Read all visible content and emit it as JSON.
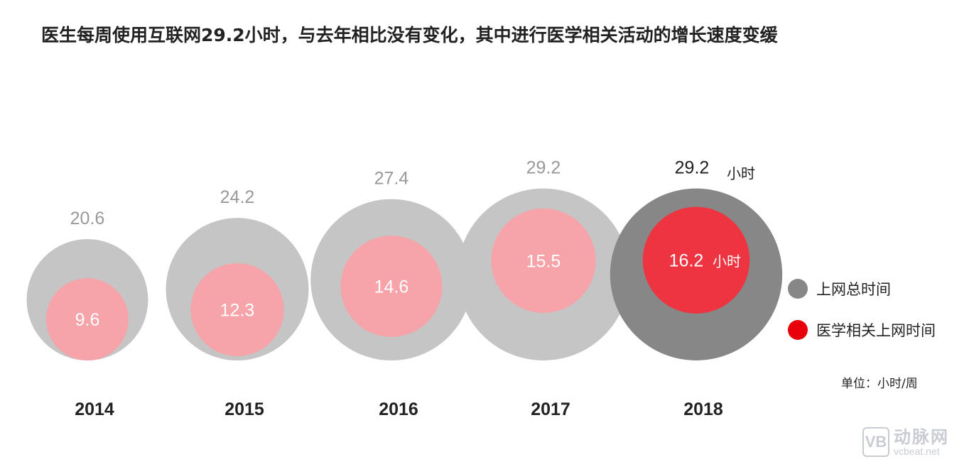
{
  "title": "医生每周使用互联网29.2小时，与去年相比没有变化，其中进行医学相关活动的增长速度变缓",
  "chart_data": {
    "type": "bubble",
    "title": "医生每周使用互联网29.2小时，与去年相比没有变化，其中进行医学相关活动的增长速度变缓",
    "categories": [
      "2014",
      "2015",
      "2016",
      "2017",
      "2018"
    ],
    "series": [
      {
        "name": "上网总时间",
        "values": [
          20.6,
          24.2,
          27.4,
          29.2,
          29.2
        ]
      },
      {
        "name": "医学相关上网时间",
        "values": [
          9.6,
          12.3,
          14.6,
          15.5,
          16.2
        ]
      }
    ],
    "unit_label": "小时",
    "unit": "单位：小时/周",
    "legend_position": "right"
  },
  "legend": [
    {
      "label": "上网总时间",
      "color": "#878787"
    },
    {
      "label": "医学相关上网时间",
      "color": "#e8000b"
    }
  ],
  "colors": {
    "total_past": "#c5c5c5",
    "total_current": "#878787",
    "medical_past": "#f6a3a9",
    "medical_current": "#ee3440",
    "value_past": "#999999",
    "value_current": "#222222"
  },
  "unit": "单位：小时/周",
  "watermark": {
    "cn": "动脉网",
    "en": "vcbeat.net",
    "mark": "VB"
  }
}
